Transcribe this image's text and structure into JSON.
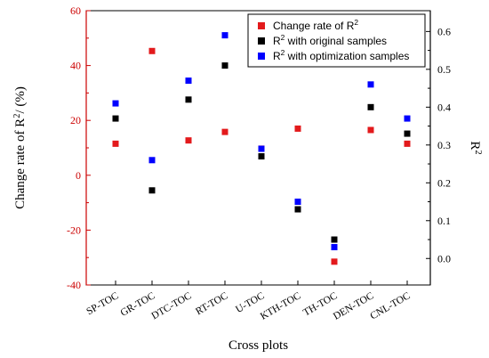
{
  "chart_data": {
    "type": "scatter",
    "categories": [
      "SP-TOC",
      "GR-TOC",
      "DTC-TOC",
      "RT-TOC",
      "U-TOC",
      "KTH-TOC",
      "TH-TOC",
      "DEN-TOC",
      "CNL-TOC"
    ],
    "xlabel": "Cross plots",
    "ylabel_left": "Change rate of R²/ (%)",
    "ylabel_right": "R²",
    "left_axis": {
      "ylim": [
        -40,
        60
      ],
      "ticks": [
        -40,
        -20,
        0,
        20,
        40,
        60
      ],
      "tick_labels": [
        "-40",
        "-20",
        "0",
        "20",
        "40",
        "60"
      ],
      "color": "#cc0000"
    },
    "right_axis": {
      "ylim": [
        -0.07,
        0.655
      ],
      "ticks": [
        0.0,
        0.1,
        0.2,
        0.3,
        0.4,
        0.5,
        0.6
      ],
      "tick_labels": [
        "0.0",
        "0.1",
        "0.2",
        "0.3",
        "0.4",
        "0.5",
        "0.6"
      ],
      "color": "#000000"
    },
    "series": [
      {
        "name": "Change rate of R²",
        "axis": "left",
        "color": "#e31a1c",
        "values": [
          11.5,
          45.3,
          12.7,
          15.8,
          9.7,
          17.0,
          -31.5,
          16.5,
          11.5
        ]
      },
      {
        "name": "R² with original samples",
        "axis": "right",
        "color": "#000000",
        "values": [
          0.37,
          0.18,
          0.42,
          0.51,
          0.27,
          0.13,
          0.05,
          0.4,
          0.33
        ]
      },
      {
        "name": "R² with optimization samples",
        "axis": "right",
        "color": "#0000ff",
        "values": [
          0.41,
          0.26,
          0.47,
          0.59,
          0.29,
          0.15,
          0.03,
          0.46,
          0.37
        ]
      }
    ],
    "legend": {
      "placement": "top-right",
      "entries": [
        "Change rate of R²",
        "R² with original samples",
        "R² with optimization samples"
      ]
    },
    "grid": false
  }
}
